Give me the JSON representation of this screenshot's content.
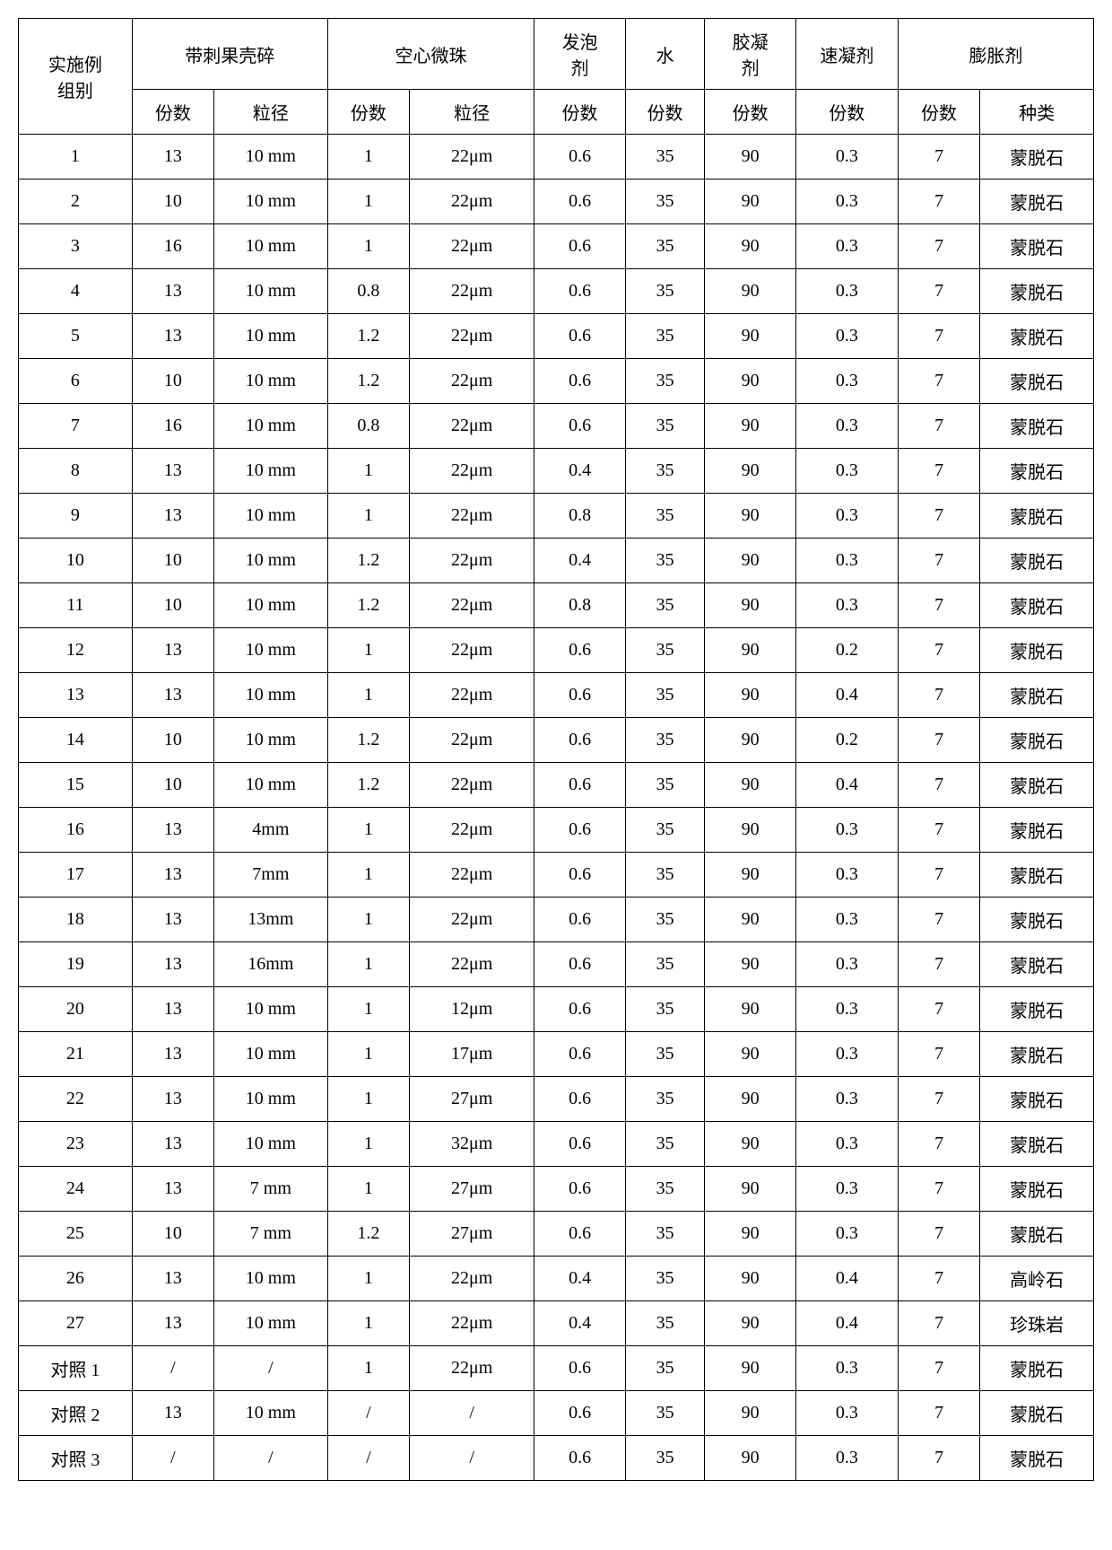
{
  "headers": {
    "group": "实施例\n组别",
    "spiny_shell": "带刺果壳碎",
    "hollow_bead": "空心微珠",
    "foaming": "发泡\n剂",
    "water": "水",
    "gel": "胶凝\n剂",
    "accelerator": "速凝剂",
    "expander": "膨胀剂",
    "parts": "份数",
    "size": "粒径",
    "type": "种类"
  },
  "rows": [
    {
      "g": "1",
      "a1": "13",
      "a2": "10 mm",
      "b1": "1",
      "b2": "22μm",
      "c": "0.6",
      "d": "35",
      "e": "90",
      "f": "0.3",
      "g1": "7",
      "g2": "蒙脱石"
    },
    {
      "g": "2",
      "a1": "10",
      "a2": "10 mm",
      "b1": "1",
      "b2": "22μm",
      "c": "0.6",
      "d": "35",
      "e": "90",
      "f": "0.3",
      "g1": "7",
      "g2": "蒙脱石"
    },
    {
      "g": "3",
      "a1": "16",
      "a2": "10 mm",
      "b1": "1",
      "b2": "22μm",
      "c": "0.6",
      "d": "35",
      "e": "90",
      "f": "0.3",
      "g1": "7",
      "g2": "蒙脱石"
    },
    {
      "g": "4",
      "a1": "13",
      "a2": "10 mm",
      "b1": "0.8",
      "b2": "22μm",
      "c": "0.6",
      "d": "35",
      "e": "90",
      "f": "0.3",
      "g1": "7",
      "g2": "蒙脱石"
    },
    {
      "g": "5",
      "a1": "13",
      "a2": "10 mm",
      "b1": "1.2",
      "b2": "22μm",
      "c": "0.6",
      "d": "35",
      "e": "90",
      "f": "0.3",
      "g1": "7",
      "g2": "蒙脱石"
    },
    {
      "g": "6",
      "a1": "10",
      "a2": "10 mm",
      "b1": "1.2",
      "b2": "22μm",
      "c": "0.6",
      "d": "35",
      "e": "90",
      "f": "0.3",
      "g1": "7",
      "g2": "蒙脱石"
    },
    {
      "g": "7",
      "a1": "16",
      "a2": "10 mm",
      "b1": "0.8",
      "b2": "22μm",
      "c": "0.6",
      "d": "35",
      "e": "90",
      "f": "0.3",
      "g1": "7",
      "g2": "蒙脱石"
    },
    {
      "g": "8",
      "a1": "13",
      "a2": "10 mm",
      "b1": "1",
      "b2": "22μm",
      "c": "0.4",
      "d": "35",
      "e": "90",
      "f": "0.3",
      "g1": "7",
      "g2": "蒙脱石"
    },
    {
      "g": "9",
      "a1": "13",
      "a2": "10 mm",
      "b1": "1",
      "b2": "22μm",
      "c": "0.8",
      "d": "35",
      "e": "90",
      "f": "0.3",
      "g1": "7",
      "g2": "蒙脱石"
    },
    {
      "g": "10",
      "a1": "10",
      "a2": "10 mm",
      "b1": "1.2",
      "b2": "22μm",
      "c": "0.4",
      "d": "35",
      "e": "90",
      "f": "0.3",
      "g1": "7",
      "g2": "蒙脱石"
    },
    {
      "g": "11",
      "a1": "10",
      "a2": "10 mm",
      "b1": "1.2",
      "b2": "22μm",
      "c": "0.8",
      "d": "35",
      "e": "90",
      "f": "0.3",
      "g1": "7",
      "g2": "蒙脱石"
    },
    {
      "g": "12",
      "a1": "13",
      "a2": "10 mm",
      "b1": "1",
      "b2": "22μm",
      "c": "0.6",
      "d": "35",
      "e": "90",
      "f": "0.2",
      "g1": "7",
      "g2": "蒙脱石"
    },
    {
      "g": "13",
      "a1": "13",
      "a2": "10 mm",
      "b1": "1",
      "b2": "22μm",
      "c": "0.6",
      "d": "35",
      "e": "90",
      "f": "0.4",
      "g1": "7",
      "g2": "蒙脱石"
    },
    {
      "g": "14",
      "a1": "10",
      "a2": "10 mm",
      "b1": "1.2",
      "b2": "22μm",
      "c": "0.6",
      "d": "35",
      "e": "90",
      "f": "0.2",
      "g1": "7",
      "g2": "蒙脱石"
    },
    {
      "g": "15",
      "a1": "10",
      "a2": "10 mm",
      "b1": "1.2",
      "b2": "22μm",
      "c": "0.6",
      "d": "35",
      "e": "90",
      "f": "0.4",
      "g1": "7",
      "g2": "蒙脱石"
    },
    {
      "g": "16",
      "a1": "13",
      "a2": "4mm",
      "b1": "1",
      "b2": "22μm",
      "c": "0.6",
      "d": "35",
      "e": "90",
      "f": "0.3",
      "g1": "7",
      "g2": "蒙脱石"
    },
    {
      "g": "17",
      "a1": "13",
      "a2": "7mm",
      "b1": "1",
      "b2": "22μm",
      "c": "0.6",
      "d": "35",
      "e": "90",
      "f": "0.3",
      "g1": "7",
      "g2": "蒙脱石"
    },
    {
      "g": "18",
      "a1": "13",
      "a2": "13mm",
      "b1": "1",
      "b2": "22μm",
      "c": "0.6",
      "d": "35",
      "e": "90",
      "f": "0.3",
      "g1": "7",
      "g2": "蒙脱石"
    },
    {
      "g": "19",
      "a1": "13",
      "a2": "16mm",
      "b1": "1",
      "b2": "22μm",
      "c": "0.6",
      "d": "35",
      "e": "90",
      "f": "0.3",
      "g1": "7",
      "g2": "蒙脱石"
    },
    {
      "g": "20",
      "a1": "13",
      "a2": "10 mm",
      "b1": "1",
      "b2": "12μm",
      "c": "0.6",
      "d": "35",
      "e": "90",
      "f": "0.3",
      "g1": "7",
      "g2": "蒙脱石"
    },
    {
      "g": "21",
      "a1": "13",
      "a2": "10 mm",
      "b1": "1",
      "b2": "17μm",
      "c": "0.6",
      "d": "35",
      "e": "90",
      "f": "0.3",
      "g1": "7",
      "g2": "蒙脱石"
    },
    {
      "g": "22",
      "a1": "13",
      "a2": "10 mm",
      "b1": "1",
      "b2": "27μm",
      "c": "0.6",
      "d": "35",
      "e": "90",
      "f": "0.3",
      "g1": "7",
      "g2": "蒙脱石"
    },
    {
      "g": "23",
      "a1": "13",
      "a2": "10 mm",
      "b1": "1",
      "b2": "32μm",
      "c": "0.6",
      "d": "35",
      "e": "90",
      "f": "0.3",
      "g1": "7",
      "g2": "蒙脱石"
    },
    {
      "g": "24",
      "a1": "13",
      "a2": "7 mm",
      "b1": "1",
      "b2": "27μm",
      "c": "0.6",
      "d": "35",
      "e": "90",
      "f": "0.3",
      "g1": "7",
      "g2": "蒙脱石"
    },
    {
      "g": "25",
      "a1": "10",
      "a2": "7 mm",
      "b1": "1.2",
      "b2": "27μm",
      "c": "0.6",
      "d": "35",
      "e": "90",
      "f": "0.3",
      "g1": "7",
      "g2": "蒙脱石"
    },
    {
      "g": "26",
      "a1": "13",
      "a2": "10 mm",
      "b1": "1",
      "b2": "22μm",
      "c": "0.4",
      "d": "35",
      "e": "90",
      "f": "0.4",
      "g1": "7",
      "g2": "高岭石"
    },
    {
      "g": "27",
      "a1": "13",
      "a2": "10 mm",
      "b1": "1",
      "b2": "22μm",
      "c": "0.4",
      "d": "35",
      "e": "90",
      "f": "0.4",
      "g1": "7",
      "g2": "珍珠岩"
    },
    {
      "g": "对照 1",
      "a1": "/",
      "a2": "/",
      "b1": "1",
      "b2": "22μm",
      "c": "0.6",
      "d": "35",
      "e": "90",
      "f": "0.3",
      "g1": "7",
      "g2": "蒙脱石"
    },
    {
      "g": "对照 2",
      "a1": "13",
      "a2": "10 mm",
      "b1": "/",
      "b2": "/",
      "c": "0.6",
      "d": "35",
      "e": "90",
      "f": "0.3",
      "g1": "7",
      "g2": "蒙脱石"
    },
    {
      "g": "对照 3",
      "a1": "/",
      "a2": "/",
      "b1": "/",
      "b2": "/",
      "c": "0.6",
      "d": "35",
      "e": "90",
      "f": "0.3",
      "g1": "7",
      "g2": "蒙脱石"
    }
  ]
}
